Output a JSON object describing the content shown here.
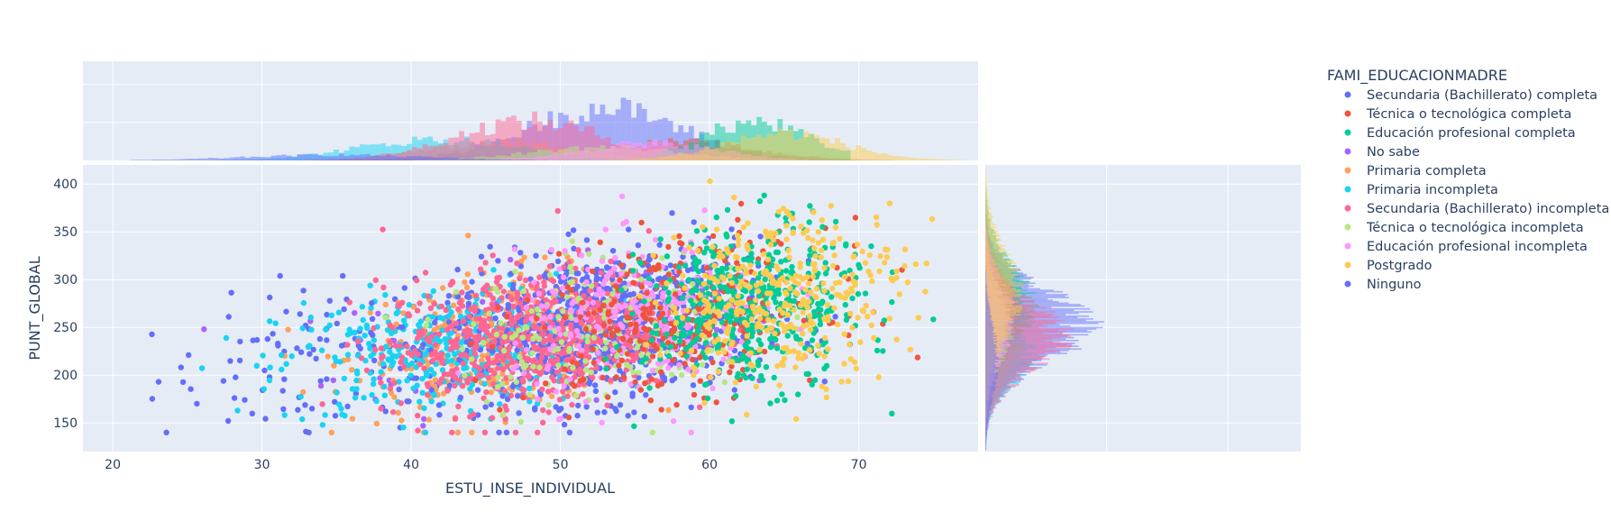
{
  "chart_data": {
    "type": "scatter",
    "title": "",
    "xlabel": "ESTU_INSE_INDIVIDUAL",
    "ylabel": "PUNT_GLOBAL",
    "xlim": [
      18,
      78
    ],
    "ylim": [
      120,
      420
    ],
    "x_ticks": [
      20,
      30,
      40,
      50,
      60,
      70
    ],
    "y_ticks": [
      150,
      200,
      250,
      300,
      350,
      400
    ],
    "grid": true,
    "legend_position": "right",
    "legend_title": "FAMI_EDUCACIONMADRE",
    "marginal_x": "histogram",
    "marginal_y": "histogram",
    "series": [
      {
        "name": "Secundaria (Bachillerato) completa",
        "color": "#636efa",
        "x_center": 53,
        "x_spread": 5.2,
        "y_center": 252,
        "y_spread": 38,
        "count": 900
      },
      {
        "name": "Técnica o tecnológica completa",
        "color": "#EF553B",
        "x_center": 58,
        "x_spread": 5,
        "y_center": 262,
        "y_spread": 40,
        "count": 300
      },
      {
        "name": "Educación profesional completa",
        "color": "#00cc96",
        "x_center": 63,
        "x_spread": 3.6,
        "y_center": 272,
        "y_spread": 42,
        "count": 450
      },
      {
        "name": "No sabe",
        "color": "#ab63fa",
        "x_center": 47,
        "x_spread": 6,
        "y_center": 240,
        "y_spread": 36,
        "count": 120
      },
      {
        "name": "Primaria completa",
        "color": "#FFA15A",
        "x_center": 46,
        "x_spread": 5,
        "y_center": 235,
        "y_spread": 35,
        "count": 300
      },
      {
        "name": "Primaria incompleta",
        "color": "#19d3f3",
        "x_center": 42,
        "x_spread": 5.5,
        "y_center": 225,
        "y_spread": 34,
        "count": 380
      },
      {
        "name": "Secundaria (Bachillerato) incompleta",
        "color": "#FF6692",
        "x_center": 48,
        "x_spread": 5,
        "y_center": 240,
        "y_spread": 36,
        "count": 650
      },
      {
        "name": "Técnica o tecnológica incompleta",
        "color": "#B6E880",
        "x_center": 53,
        "x_spread": 5,
        "y_center": 250,
        "y_spread": 38,
        "count": 220
      },
      {
        "name": "Educación profesional incompleta",
        "color": "#FF97FF",
        "x_center": 56,
        "x_spread": 4.5,
        "y_center": 258,
        "y_spread": 40,
        "count": 260
      },
      {
        "name": "Postgrado",
        "color": "#FECB52",
        "x_center": 65,
        "x_spread": 4,
        "y_center": 285,
        "y_spread": 45,
        "count": 360
      },
      {
        "name": "Ninguno",
        "color": "#636efa",
        "x_center": 35,
        "x_spread": 6,
        "y_center": 215,
        "y_spread": 38,
        "count": 110
      }
    ]
  }
}
